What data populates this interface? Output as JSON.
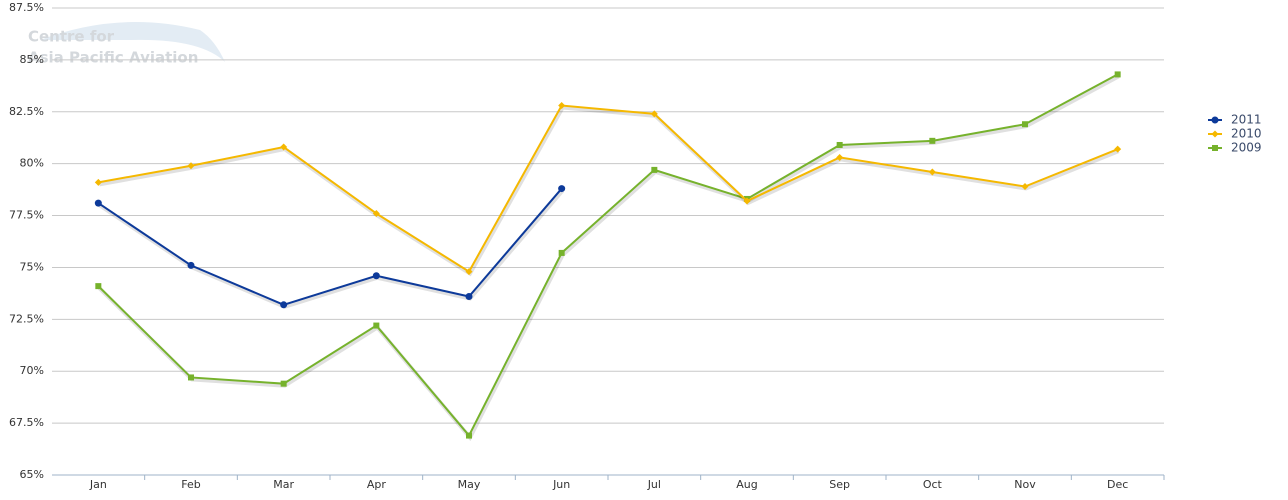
{
  "chart_data": {
    "type": "line",
    "watermark": [
      "Centre for",
      "Asia Pacific Aviation"
    ],
    "categories": [
      "Jan",
      "Feb",
      "Mar",
      "Apr",
      "May",
      "Jun",
      "Jul",
      "Aug",
      "Sep",
      "Oct",
      "Nov",
      "Dec"
    ],
    "series": [
      {
        "name": "2011",
        "color": "#0d3a9a",
        "marker": "circle",
        "values": [
          78.1,
          75.1,
          73.2,
          74.6,
          73.6,
          78.8,
          null,
          null,
          null,
          null,
          null,
          null
        ]
      },
      {
        "name": "2010",
        "color": "#f5b800",
        "marker": "diamond",
        "values": [
          79.1,
          79.9,
          80.8,
          77.6,
          74.8,
          82.8,
          82.4,
          78.2,
          80.3,
          79.6,
          78.9,
          80.7
        ]
      },
      {
        "name": "2009",
        "color": "#76b22c",
        "marker": "square",
        "values": [
          74.1,
          69.7,
          69.4,
          72.2,
          66.9,
          75.7,
          79.7,
          78.3,
          80.9,
          81.1,
          81.9,
          84.3
        ]
      }
    ],
    "ylim": [
      65,
      87.5
    ],
    "yticks": [
      {
        "value": 65,
        "label": "65%"
      },
      {
        "value": 67.5,
        "label": "67.5%"
      },
      {
        "value": 70,
        "label": "70%"
      },
      {
        "value": 72.5,
        "label": "72.5%"
      },
      {
        "value": 75,
        "label": "75%"
      },
      {
        "value": 77.5,
        "label": "77.5%"
      },
      {
        "value": 80,
        "label": "80%"
      },
      {
        "value": 82.5,
        "label": "82.5%"
      },
      {
        "value": 85,
        "label": "85%"
      },
      {
        "value": 87.5,
        "label": "87.5%"
      }
    ],
    "grid": true,
    "legend": "right"
  }
}
